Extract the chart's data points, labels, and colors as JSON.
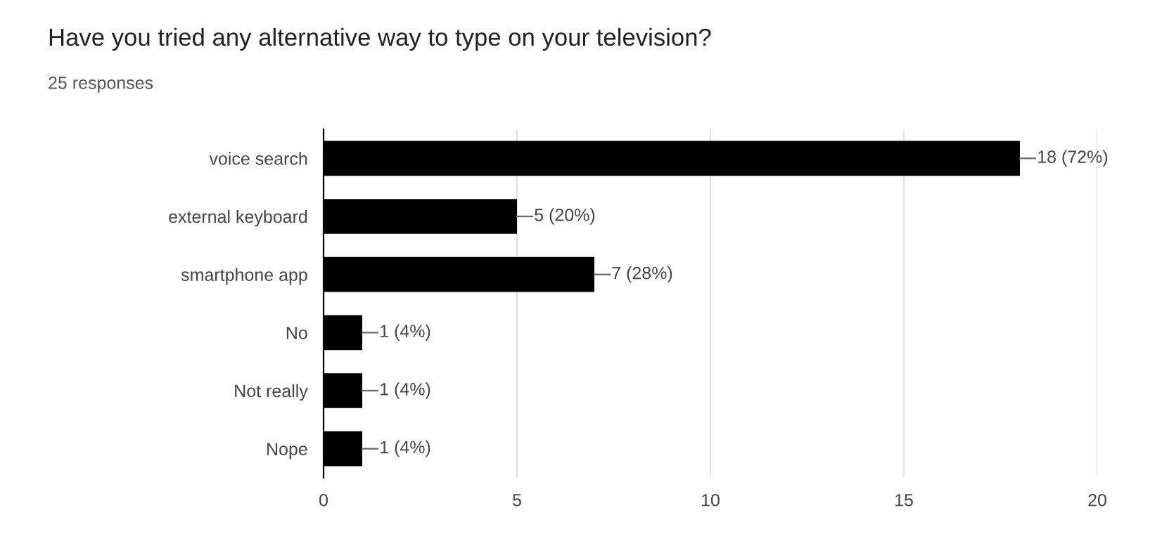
{
  "chart_data": {
    "type": "bar",
    "orientation": "horizontal",
    "title": "Have you tried any alternative way to type on your television?",
    "subtitle": "25 responses",
    "categories": [
      "voice search",
      "external keyboard",
      "smartphone app",
      "No",
      "Not really",
      "Nope"
    ],
    "values": [
      18,
      5,
      7,
      1,
      1,
      1
    ],
    "value_labels": [
      "18 (72%)",
      "5 (20%)",
      "7 (28%)",
      "1 (4%)",
      "1 (4%)",
      "1 (4%)"
    ],
    "color": "#000000",
    "xlim": [
      0,
      20
    ],
    "xticks": [
      0,
      5,
      10,
      15,
      20
    ],
    "grid": "x"
  }
}
